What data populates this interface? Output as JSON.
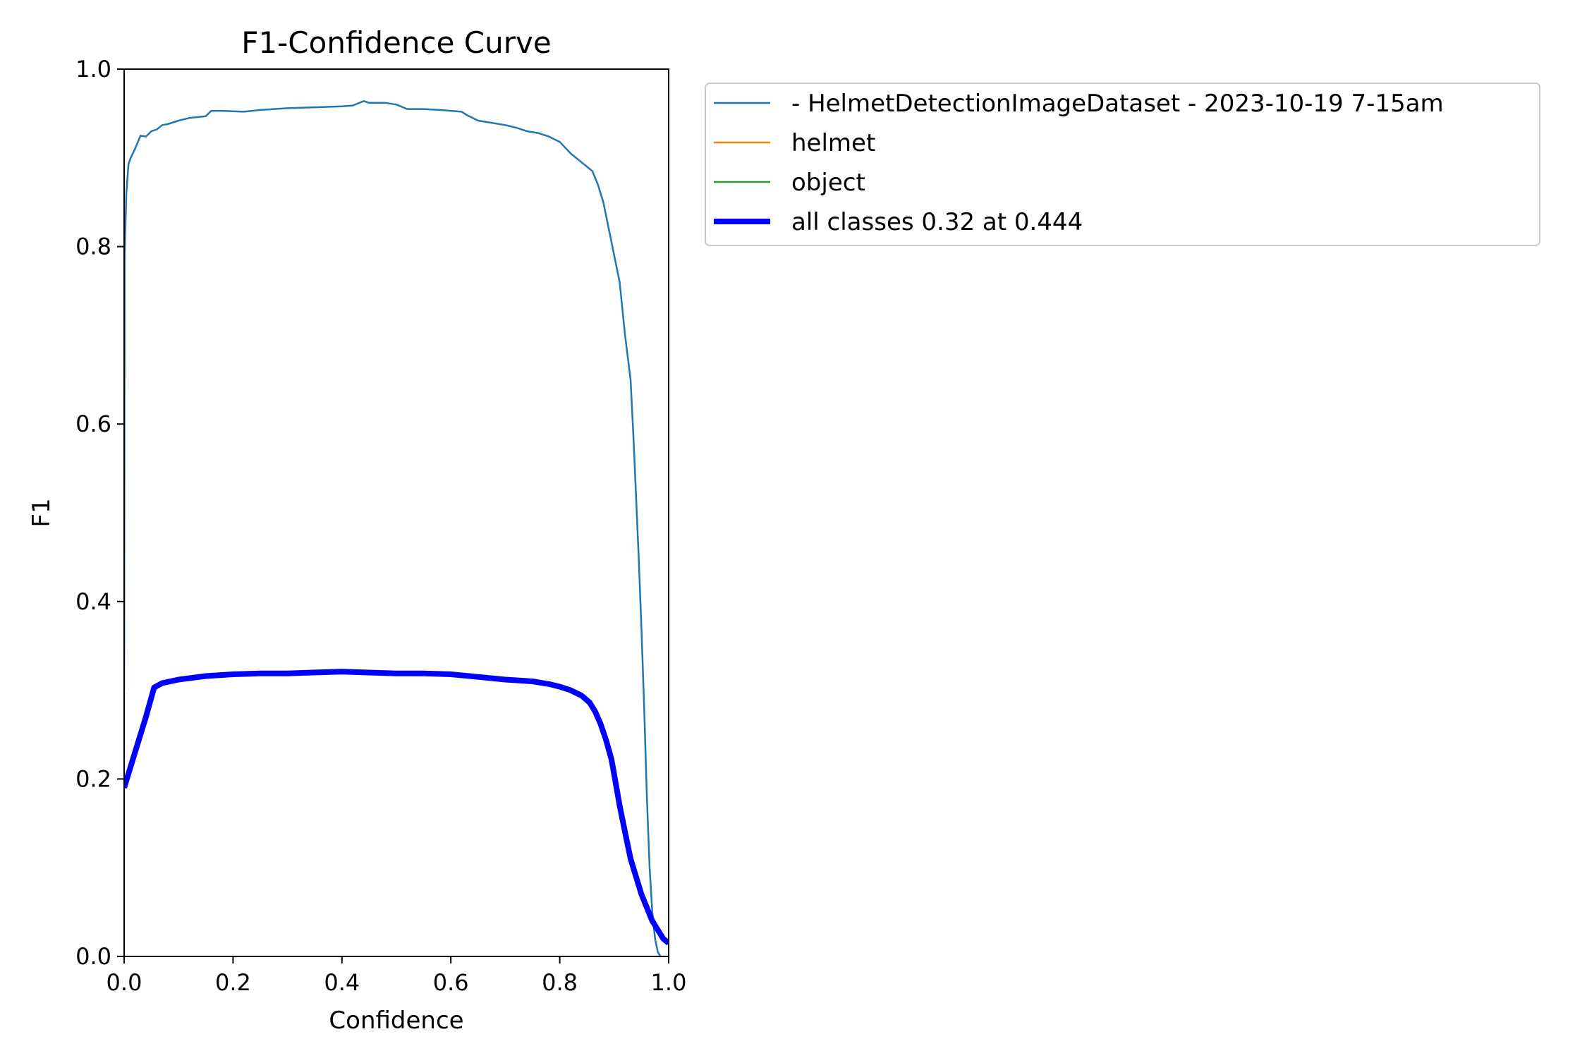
{
  "chart_data": {
    "type": "line",
    "title": "F1-Confidence Curve",
    "xlabel": "Confidence",
    "ylabel": "F1",
    "xlim": [
      0,
      1
    ],
    "ylim": [
      0,
      1
    ],
    "grid": false,
    "legend_placement": "outside-upper-right",
    "xticks": [
      "0.0",
      "0.2",
      "0.4",
      "0.6",
      "0.8",
      "1.0"
    ],
    "yticks": [
      "0.0",
      "0.2",
      "0.4",
      "0.6",
      "0.8",
      "1.0"
    ],
    "series": [
      {
        "name": "- HelmetDetectionImageDataset - 2023-10-19 7-15am",
        "color": "#1f77b4",
        "width": "thin",
        "x": [
          0.0,
          0.001,
          0.004,
          0.008,
          0.012,
          0.02,
          0.03,
          0.04,
          0.05,
          0.06,
          0.07,
          0.08,
          0.1,
          0.12,
          0.15,
          0.16,
          0.18,
          0.22,
          0.25,
          0.3,
          0.35,
          0.4,
          0.42,
          0.44,
          0.45,
          0.48,
          0.5,
          0.52,
          0.55,
          0.58,
          0.6,
          0.62,
          0.63,
          0.65,
          0.7,
          0.72,
          0.74,
          0.76,
          0.78,
          0.8,
          0.82,
          0.84,
          0.85,
          0.86,
          0.87,
          0.88,
          0.89,
          0.9,
          0.91,
          0.92,
          0.93,
          0.935,
          0.94,
          0.945,
          0.95,
          0.955,
          0.96,
          0.965,
          0.97,
          0.975,
          0.98,
          0.985
        ],
        "y": [
          0.3,
          0.79,
          0.86,
          0.893,
          0.9,
          0.91,
          0.925,
          0.924,
          0.93,
          0.932,
          0.937,
          0.938,
          0.942,
          0.945,
          0.947,
          0.953,
          0.953,
          0.952,
          0.954,
          0.956,
          0.957,
          0.958,
          0.959,
          0.964,
          0.962,
          0.962,
          0.96,
          0.955,
          0.955,
          0.954,
          0.953,
          0.952,
          0.948,
          0.942,
          0.937,
          0.934,
          0.93,
          0.928,
          0.924,
          0.918,
          0.905,
          0.895,
          0.89,
          0.885,
          0.87,
          0.85,
          0.82,
          0.79,
          0.76,
          0.7,
          0.65,
          0.59,
          0.52,
          0.45,
          0.37,
          0.28,
          0.18,
          0.1,
          0.05,
          0.02,
          0.005,
          0.0
        ]
      },
      {
        "name": "helmet",
        "color": "#ff7f0e",
        "width": "thin",
        "x": [],
        "y": []
      },
      {
        "name": "object",
        "color": "#2ca02c",
        "width": "thin",
        "x": [],
        "y": []
      },
      {
        "name": "all classes 0.32 at 0.444",
        "color": "#0000ff",
        "width": "thick",
        "x": [
          0.0,
          0.02,
          0.04,
          0.055,
          0.07,
          0.1,
          0.15,
          0.2,
          0.25,
          0.3,
          0.35,
          0.4,
          0.444,
          0.5,
          0.55,
          0.6,
          0.65,
          0.7,
          0.75,
          0.78,
          0.8,
          0.82,
          0.84,
          0.855,
          0.865,
          0.875,
          0.885,
          0.895,
          0.9,
          0.91,
          0.92,
          0.93,
          0.94,
          0.95,
          0.96,
          0.97,
          0.98,
          0.99,
          1.0
        ],
        "y": [
          0.19,
          0.23,
          0.27,
          0.303,
          0.308,
          0.312,
          0.316,
          0.318,
          0.319,
          0.319,
          0.32,
          0.321,
          0.32,
          0.319,
          0.319,
          0.318,
          0.315,
          0.312,
          0.31,
          0.307,
          0.304,
          0.3,
          0.294,
          0.286,
          0.276,
          0.262,
          0.244,
          0.222,
          0.205,
          0.17,
          0.14,
          0.11,
          0.09,
          0.07,
          0.055,
          0.04,
          0.03,
          0.02,
          0.015
        ]
      }
    ]
  }
}
